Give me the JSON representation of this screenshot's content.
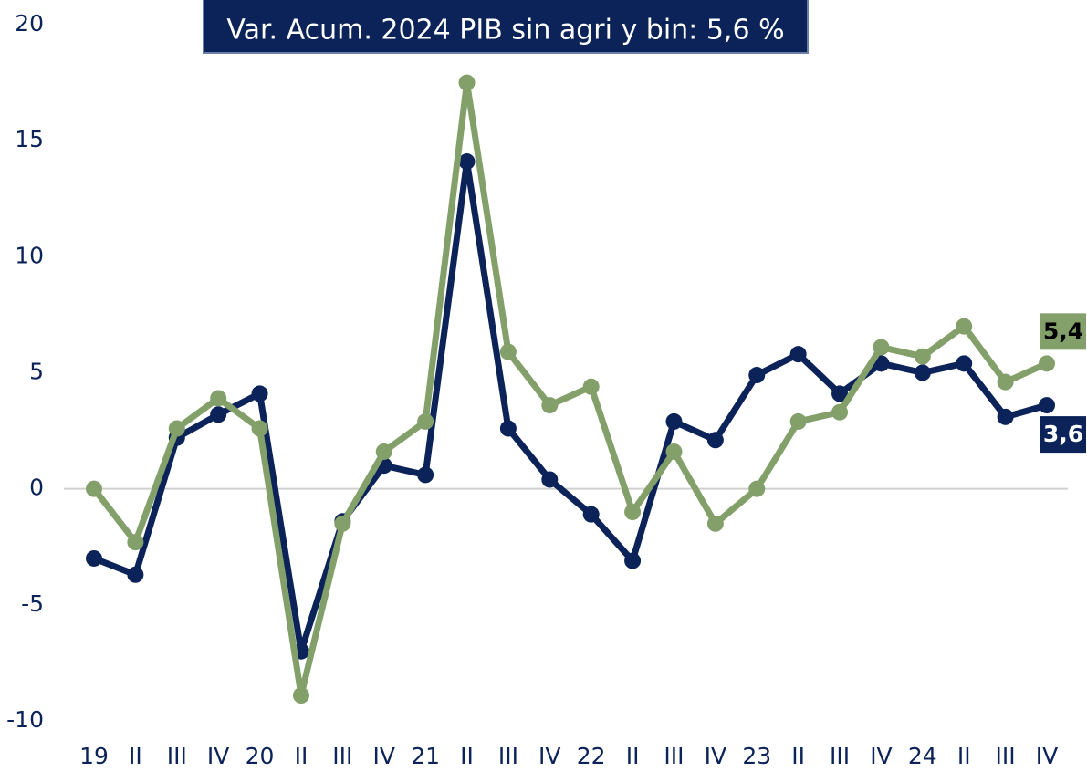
{
  "chart_data": {
    "type": "line",
    "annotation": "Var. Acum. 2024 PIB sin agri y bin: 5,6 %",
    "categories": [
      "19",
      "II",
      "III",
      "IV",
      "20",
      "II",
      "III",
      "IV",
      "21",
      "II",
      "III",
      "IV",
      "22",
      "II",
      "III",
      "IV",
      "23",
      "II",
      "III",
      "IV",
      "24",
      "II",
      "III",
      "IV"
    ],
    "series": [
      {
        "color": "#0b2359",
        "values": [
          -3.0,
          -3.7,
          2.2,
          3.2,
          4.1,
          -7.0,
          -1.4,
          1.0,
          0.6,
          14.1,
          2.6,
          0.4,
          -1.1,
          -3.1,
          2.9,
          2.1,
          4.9,
          5.8,
          4.1,
          5.4,
          5.0,
          5.4,
          3.1,
          3.6
        ],
        "value_labels": [
          null,
          null,
          null,
          null,
          null,
          null,
          null,
          null,
          null,
          null,
          null,
          null,
          null,
          null,
          null,
          null,
          null,
          null,
          null,
          null,
          null,
          null,
          null,
          "3,6"
        ]
      },
      {
        "color": "#84a06a",
        "values": [
          0.0,
          -2.3,
          2.6,
          3.9,
          2.6,
          -8.9,
          -1.5,
          1.6,
          2.9,
          17.5,
          5.9,
          3.6,
          4.4,
          -1.0,
          1.6,
          -1.5,
          0.0,
          2.9,
          3.3,
          6.1,
          5.7,
          7.0,
          4.6,
          5.4
        ],
        "value_labels": [
          null,
          null,
          null,
          null,
          null,
          null,
          null,
          null,
          null,
          null,
          null,
          null,
          null,
          null,
          null,
          null,
          null,
          null,
          null,
          null,
          null,
          null,
          null,
          "5,4"
        ]
      }
    ],
    "ylim": [
      -10,
      20
    ],
    "yticks": [
      -10,
      -5,
      0,
      5,
      10,
      15,
      20
    ],
    "zero_line": true
  }
}
